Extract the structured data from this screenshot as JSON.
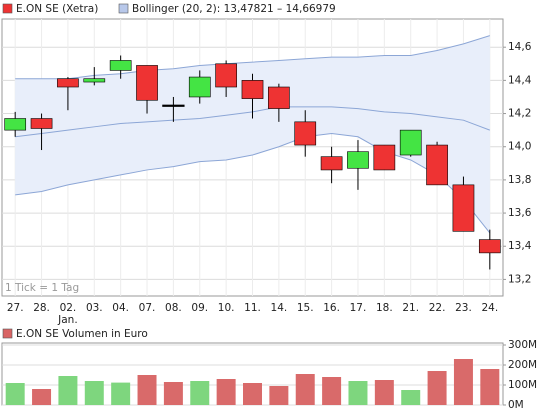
{
  "chart_data": [
    {
      "type": "candlestick",
      "title": "E.ON SE (Xetra)",
      "categories": [
        "27.",
        "28.",
        "02.",
        "03.",
        "04.",
        "07.",
        "08.",
        "09.",
        "10.",
        "11.",
        "14.",
        "15.",
        "16.",
        "17.",
        "18.",
        "21.",
        "22.",
        "23.",
        "24."
      ],
      "month_label": "Jan.",
      "open": [
        14.1,
        14.17,
        14.41,
        14.39,
        14.46,
        14.49,
        14.25,
        14.3,
        14.5,
        14.4,
        14.36,
        14.15,
        13.94,
        13.87,
        14.01,
        13.95,
        14.01,
        13.77,
        13.44
      ],
      "high": [
        14.21,
        14.2,
        14.42,
        14.48,
        14.55,
        14.49,
        14.3,
        14.46,
        14.52,
        14.44,
        14.38,
        14.22,
        14.0,
        14.04,
        14.01,
        14.1,
        14.03,
        13.82,
        13.5
      ],
      "low": [
        14.06,
        13.98,
        14.22,
        14.37,
        14.41,
        14.2,
        14.15,
        14.26,
        14.3,
        14.17,
        14.15,
        13.94,
        13.78,
        13.74,
        13.86,
        13.94,
        13.77,
        13.49,
        13.26
      ],
      "close": [
        14.17,
        14.11,
        14.36,
        14.41,
        14.52,
        14.28,
        14.25,
        14.42,
        14.36,
        14.29,
        14.23,
        14.01,
        13.86,
        13.97,
        13.86,
        14.1,
        13.77,
        13.49,
        13.36
      ],
      "up_color": "#44e444",
      "down_color": "#ee3333",
      "bollinger": {
        "name": "Bollinger (20, 2): 13,47821 – 14,66979",
        "color": "#8ca6d6",
        "fill": "#e8eefa",
        "upper": [
          14.41,
          14.41,
          14.41,
          14.43,
          14.44,
          14.46,
          14.47,
          14.49,
          14.5,
          14.51,
          14.52,
          14.53,
          14.54,
          14.54,
          14.55,
          14.55,
          14.58,
          14.62,
          14.67
        ],
        "middle": [
          14.06,
          14.08,
          14.1,
          14.12,
          14.14,
          14.15,
          14.16,
          14.17,
          14.19,
          14.21,
          14.24,
          14.24,
          14.24,
          14.23,
          14.21,
          14.2,
          14.18,
          14.16,
          14.1
        ],
        "lower": [
          13.71,
          13.73,
          13.77,
          13.8,
          13.83,
          13.86,
          13.88,
          13.91,
          13.92,
          13.95,
          14.0,
          14.06,
          14.08,
          14.06,
          13.97,
          13.92,
          13.83,
          13.68,
          13.48
        ]
      },
      "note": "1 Tick = 1 Tag",
      "ylim": [
        13.1,
        14.77
      ],
      "yticks": [
        {
          "value": 13.2,
          "label": "13,2"
        },
        {
          "value": 13.4,
          "label": "13,4"
        },
        {
          "value": 13.6,
          "label": "13,6"
        },
        {
          "value": 13.8,
          "label": "13,8"
        },
        {
          "value": 14.0,
          "label": "14,0"
        },
        {
          "value": 14.2,
          "label": "14,2"
        },
        {
          "value": 14.4,
          "label": "14,4"
        },
        {
          "value": 14.6,
          "label": "14,6"
        }
      ],
      "grid": true
    },
    {
      "type": "bar",
      "title": "E.ON SE Volumen in Euro",
      "color": "#d96464",
      "values": [
        110,
        80,
        145,
        120,
        112,
        150,
        115,
        120,
        130,
        110,
        95,
        155,
        140,
        120,
        125,
        75,
        170,
        230,
        180
      ],
      "colors": [
        "#7ed67e",
        "#d96a6a",
        "#7ed67e",
        "#7ed67e",
        "#7ed67e",
        "#d96a6a",
        "#d96a6a",
        "#7ed67e",
        "#d96a6a",
        "#d96a6a",
        "#d96a6a",
        "#d96a6a",
        "#d96a6a",
        "#7ed67e",
        "#d96a6a",
        "#7ed67e",
        "#d96a6a",
        "#d96a6a",
        "#d96a6a"
      ],
      "ylim": [
        0,
        310
      ],
      "yticks": [
        {
          "value": 0,
          "label": "0M"
        },
        {
          "value": 100,
          "label": "100M"
        },
        {
          "value": 200,
          "label": "200M"
        },
        {
          "value": 300,
          "label": "300M"
        }
      ],
      "grid": true
    }
  ]
}
